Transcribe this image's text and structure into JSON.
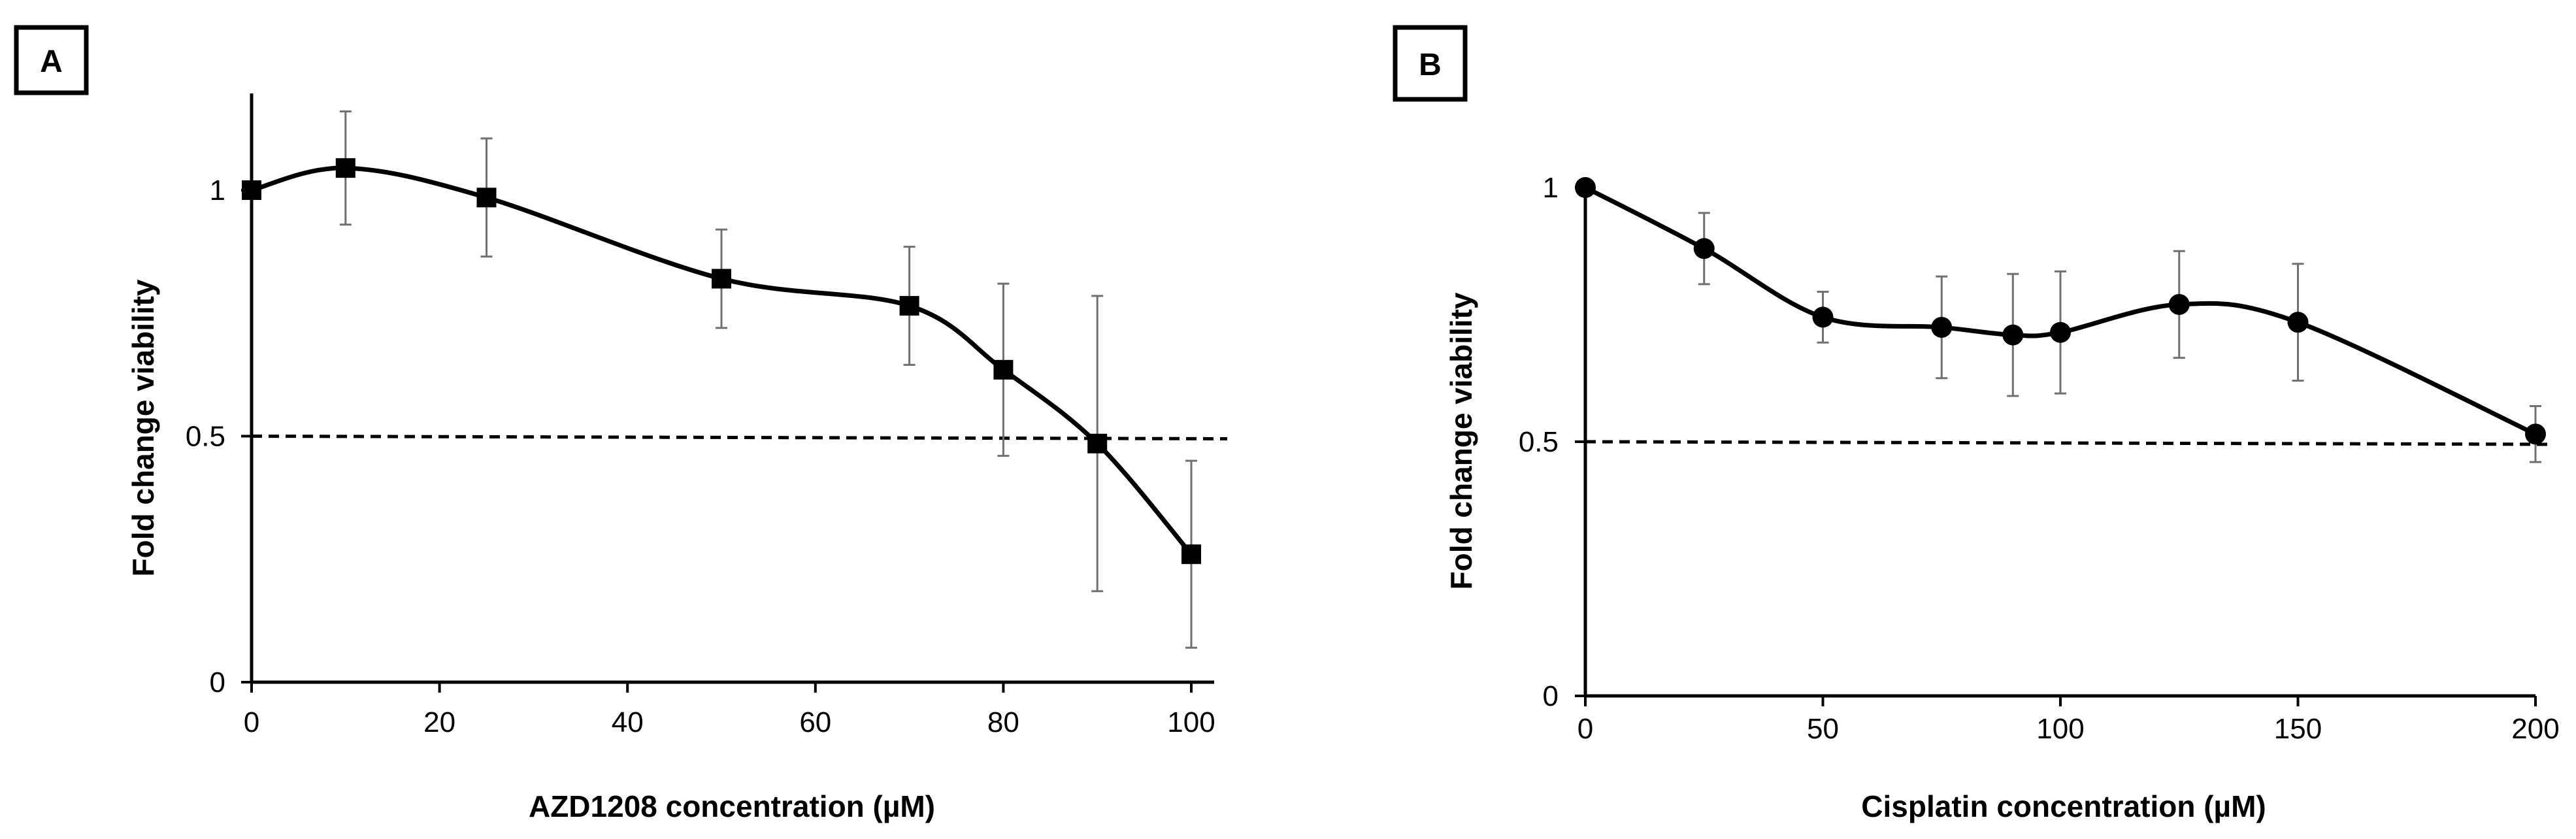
{
  "chart_data": [
    {
      "panel": "A",
      "type": "line",
      "marker": "square",
      "xlabel": "AZD1208 concentration (µM)",
      "ylabel": "Fold change viability",
      "x": [
        0,
        10,
        25,
        50,
        70,
        80,
        90,
        100
      ],
      "y": [
        1.0,
        1.045,
        0.985,
        0.82,
        0.765,
        0.635,
        0.485,
        0.26
      ],
      "error": [
        0.0,
        0.115,
        0.12,
        0.1,
        0.12,
        0.175,
        0.3,
        0.19
      ],
      "xlim": [
        0,
        100
      ],
      "ylim": [
        0,
        1.2
      ],
      "xticks": [
        0,
        20,
        40,
        60,
        80,
        100
      ],
      "yticks": [
        0,
        0.5,
        1
      ],
      "ytick_labels": [
        "0",
        "0.5",
        "1"
      ],
      "threshold": 0.5
    },
    {
      "panel": "B",
      "type": "line",
      "marker": "circle",
      "xlabel": "Cisplatin concentration (µM)",
      "ylabel": "Fold change viability",
      "x": [
        0,
        25,
        50,
        75,
        90,
        100,
        125,
        150,
        200
      ],
      "y": [
        1.0,
        0.88,
        0.745,
        0.725,
        0.71,
        0.715,
        0.77,
        0.735,
        0.515
      ],
      "error": [
        0.0,
        0.07,
        0.05,
        0.1,
        0.12,
        0.12,
        0.105,
        0.115,
        0.055
      ],
      "xlim": [
        0,
        200
      ],
      "ylim": [
        0,
        1.0
      ],
      "xticks": [
        0,
        50,
        100,
        150,
        200
      ],
      "yticks": [
        0,
        0.5,
        1
      ],
      "ytick_labels": [
        "0",
        "0.5",
        "1"
      ],
      "threshold": 0.5
    }
  ]
}
